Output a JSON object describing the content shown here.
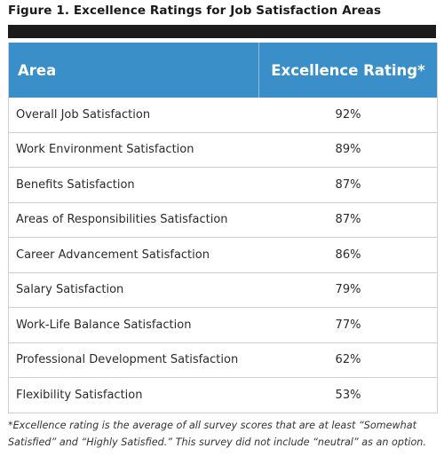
{
  "figure": {
    "title": "Figure 1. Excellence Ratings for Job Satisfaction Areas"
  },
  "table": {
    "headers": {
      "area": "Area",
      "rating": "Excellence Rating*"
    },
    "rows": [
      {
        "area": "Overall Job Satisfaction",
        "rating": "92%"
      },
      {
        "area": "Work Environment Satisfaction",
        "rating": "89%"
      },
      {
        "area": "Benefits Satisfaction",
        "rating": "87%"
      },
      {
        "area": "Areas of Responsibilities Satisfaction",
        "rating": "87%"
      },
      {
        "area": "Career Advancement Satisfaction",
        "rating": "86%"
      },
      {
        "area": "Salary Satisfaction",
        "rating": "79%"
      },
      {
        "area": "Work-Life Balance Satisfaction",
        "rating": "77%"
      },
      {
        "area": "Professional Development Satisfaction",
        "rating": "62%"
      },
      {
        "area": "Flexibility Satisfaction",
        "rating": "53%"
      }
    ]
  },
  "footnote": {
    "line1": "*Excellence rating is the average of all survey scores that are at least “Somewhat",
    "line2": "Satisfied” and “Highly Satisfied.” This survey did not include “neutral” as an option."
  },
  "colors": {
    "header_bg": "#3a8fc9",
    "rule": "#1b1b1b"
  }
}
